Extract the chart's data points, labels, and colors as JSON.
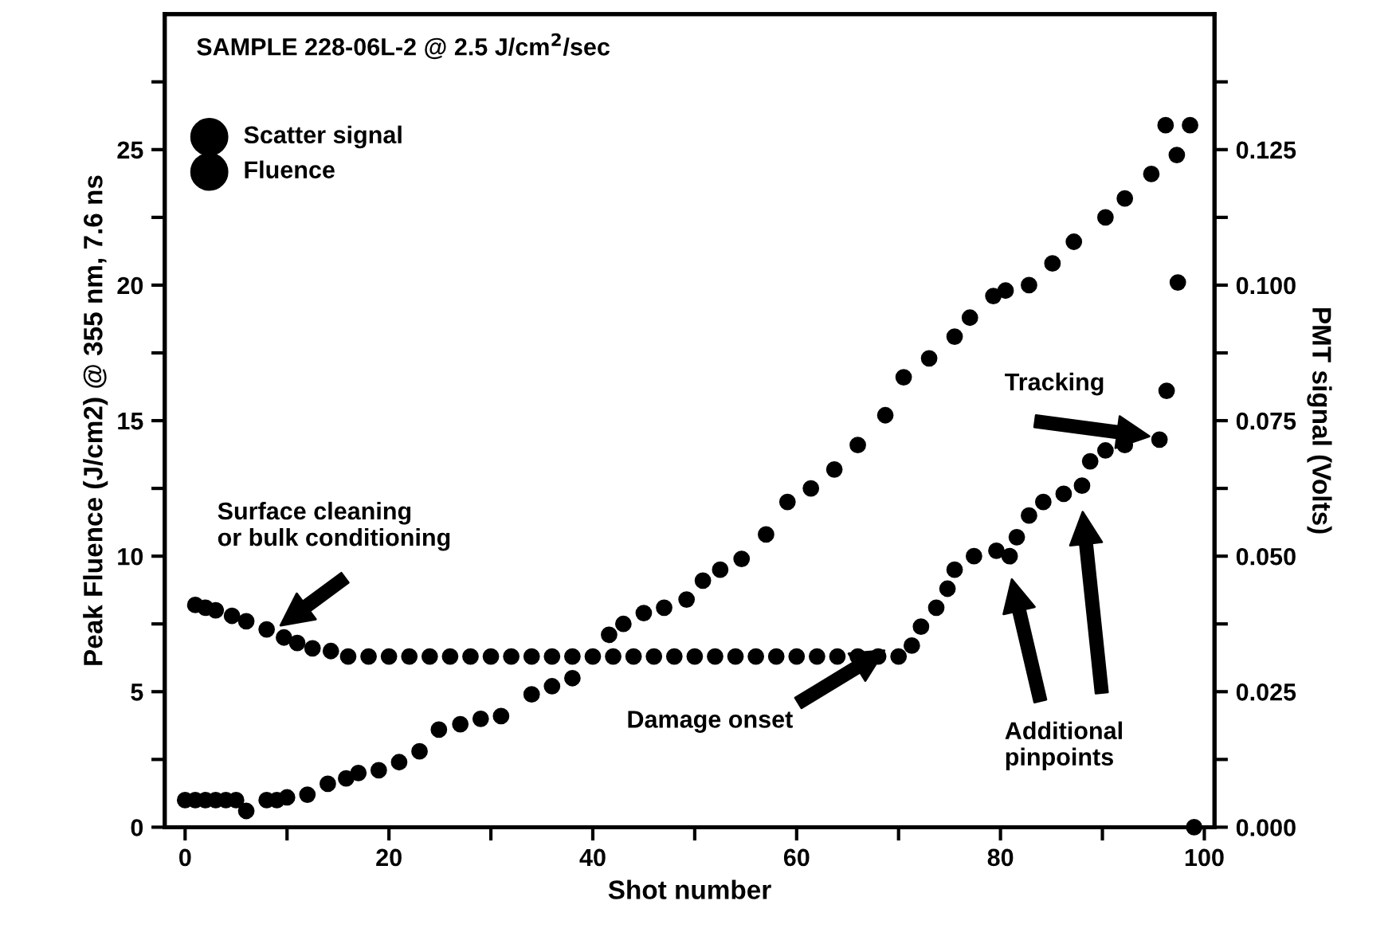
{
  "chart_data": {
    "type": "scatter",
    "title": "SAMPLE 228-06L-2 @ 2.5 J/cm$^{2}$/sec",
    "xlabel": "Shot number",
    "ylabel": "Peak Fluence (J/cm2) @ 355 nm, 7.6 ns",
    "y2label": "PMT signal (Volts)",
    "xlim": [
      -2,
      101
    ],
    "xticks": [
      0,
      {
        "value": 10,
        "label": null
      },
      20,
      {
        "value": 30,
        "label": null
      },
      40,
      {
        "value": 50,
        "label": null
      },
      60,
      {
        "value": 70,
        "label": null
      },
      80,
      {
        "value": 90,
        "label": null
      },
      100
    ],
    "ylim": [
      0,
      30
    ],
    "yticks": [
      0,
      {
        "value": 2.5,
        "label": null
      },
      5,
      {
        "value": 7.5,
        "label": null
      },
      10,
      {
        "value": 12.5,
        "label": null
      },
      15,
      {
        "value": 17.5,
        "label": null
      },
      20,
      {
        "value": 22.5,
        "label": null
      },
      25,
      {
        "value": 27.5,
        "label": null
      }
    ],
    "y2lim": [
      0,
      0.15
    ],
    "y2ticks": [
      {
        "value": 0,
        "label": "0.000"
      },
      {
        "value": 0.0125,
        "label": null
      },
      {
        "value": 0.025,
        "label": "0.025"
      },
      {
        "value": 0.0375,
        "label": null
      },
      {
        "value": 0.05,
        "label": "0.050"
      },
      {
        "value": 0.0625,
        "label": null
      },
      {
        "value": 0.075,
        "label": "0.075"
      },
      {
        "value": 0.0875,
        "label": null
      },
      {
        "value": 0.1,
        "label": "0.100"
      },
      {
        "value": 0.1125,
        "label": null
      },
      {
        "value": 0.125,
        "label": "0.125"
      },
      {
        "value": 0.1375,
        "label": null
      }
    ],
    "grid": false,
    "legend": "top left",
    "marker": "circle",
    "series": [
      {
        "name": "Scatter signal",
        "color": "#000000",
        "axis": "y2",
        "x": [
          1,
          2,
          3,
          4.6,
          6,
          8,
          9.7,
          11,
          12.5,
          14.3,
          16,
          18,
          20,
          22,
          24,
          26,
          28,
          30,
          32,
          34,
          36,
          38,
          40,
          42,
          44,
          46,
          48,
          50,
          52,
          54,
          56,
          58,
          60,
          62,
          64,
          66,
          68,
          70,
          71.3,
          72.2,
          73.7,
          74.8,
          75.5,
          77.4,
          79.6,
          80.9,
          81.6,
          82.8,
          84.2,
          86.2,
          88,
          88.8,
          90.3,
          92.2,
          95.6,
          96.3,
          97.4,
          97.3,
          98.6,
          99
        ],
        "values": [
          0.041,
          0.0405,
          0.04,
          0.039,
          0.038,
          0.0365,
          0.035,
          0.034,
          0.033,
          0.0325,
          0.0315,
          0.0315,
          0.0315,
          0.0315,
          0.0315,
          0.0315,
          0.0315,
          0.0315,
          0.0315,
          0.0315,
          0.0315,
          0.0315,
          0.0315,
          0.0315,
          0.0315,
          0.0315,
          0.0315,
          0.0315,
          0.0315,
          0.0315,
          0.0315,
          0.0315,
          0.0315,
          0.0315,
          0.0315,
          0.0315,
          0.0315,
          0.0315,
          0.0335,
          0.037,
          0.0405,
          0.044,
          0.0475,
          0.05,
          0.051,
          0.05,
          0.0535,
          0.0575,
          0.06,
          0.0615,
          0.063,
          0.0675,
          0.0695,
          0.0705,
          0.0715,
          0.0805,
          0.1005,
          0.124,
          0.1295,
          0
        ]
      },
      {
        "name": "Fluence",
        "color": "#000000",
        "x": [
          0,
          1,
          2,
          3,
          4,
          5,
          6,
          8,
          9,
          10,
          12,
          14,
          15.8,
          17,
          19,
          21,
          23,
          24.9,
          27,
          29,
          31,
          34,
          36,
          38,
          41.6,
          43,
          45,
          47,
          49.2,
          50.8,
          52.5,
          54.6,
          57,
          59.1,
          61.4,
          63.7,
          66,
          68.7,
          70.5,
          73,
          75.5,
          77,
          79.3,
          80.5,
          82.8,
          85.1,
          87.2,
          90.3,
          92.2,
          94.8,
          96.2
        ],
        "values": [
          1.0,
          1.0,
          1.0,
          1.0,
          1.0,
          1.0,
          0.6,
          1.0,
          1.0,
          1.1,
          1.2,
          1.6,
          1.8,
          2.0,
          2.1,
          2.4,
          2.8,
          3.6,
          3.8,
          4.0,
          4.1,
          4.9,
          5.2,
          5.5,
          7.1,
          7.5,
          7.9,
          8.1,
          8.4,
          9.1,
          9.5,
          9.9,
          10.8,
          12.0,
          12.5,
          13.2,
          14.1,
          15.2,
          16.6,
          17.3,
          18.1,
          18.8,
          19.6,
          19.8,
          20.0,
          20.8,
          21.6,
          22.5,
          23.2,
          24.1,
          25.9
        ]
      }
    ],
    "annotations": [
      "Surface cleaning\nor bulk conditioning",
      "Damage onset",
      "Tracking",
      "Additional\npinpoints"
    ]
  }
}
